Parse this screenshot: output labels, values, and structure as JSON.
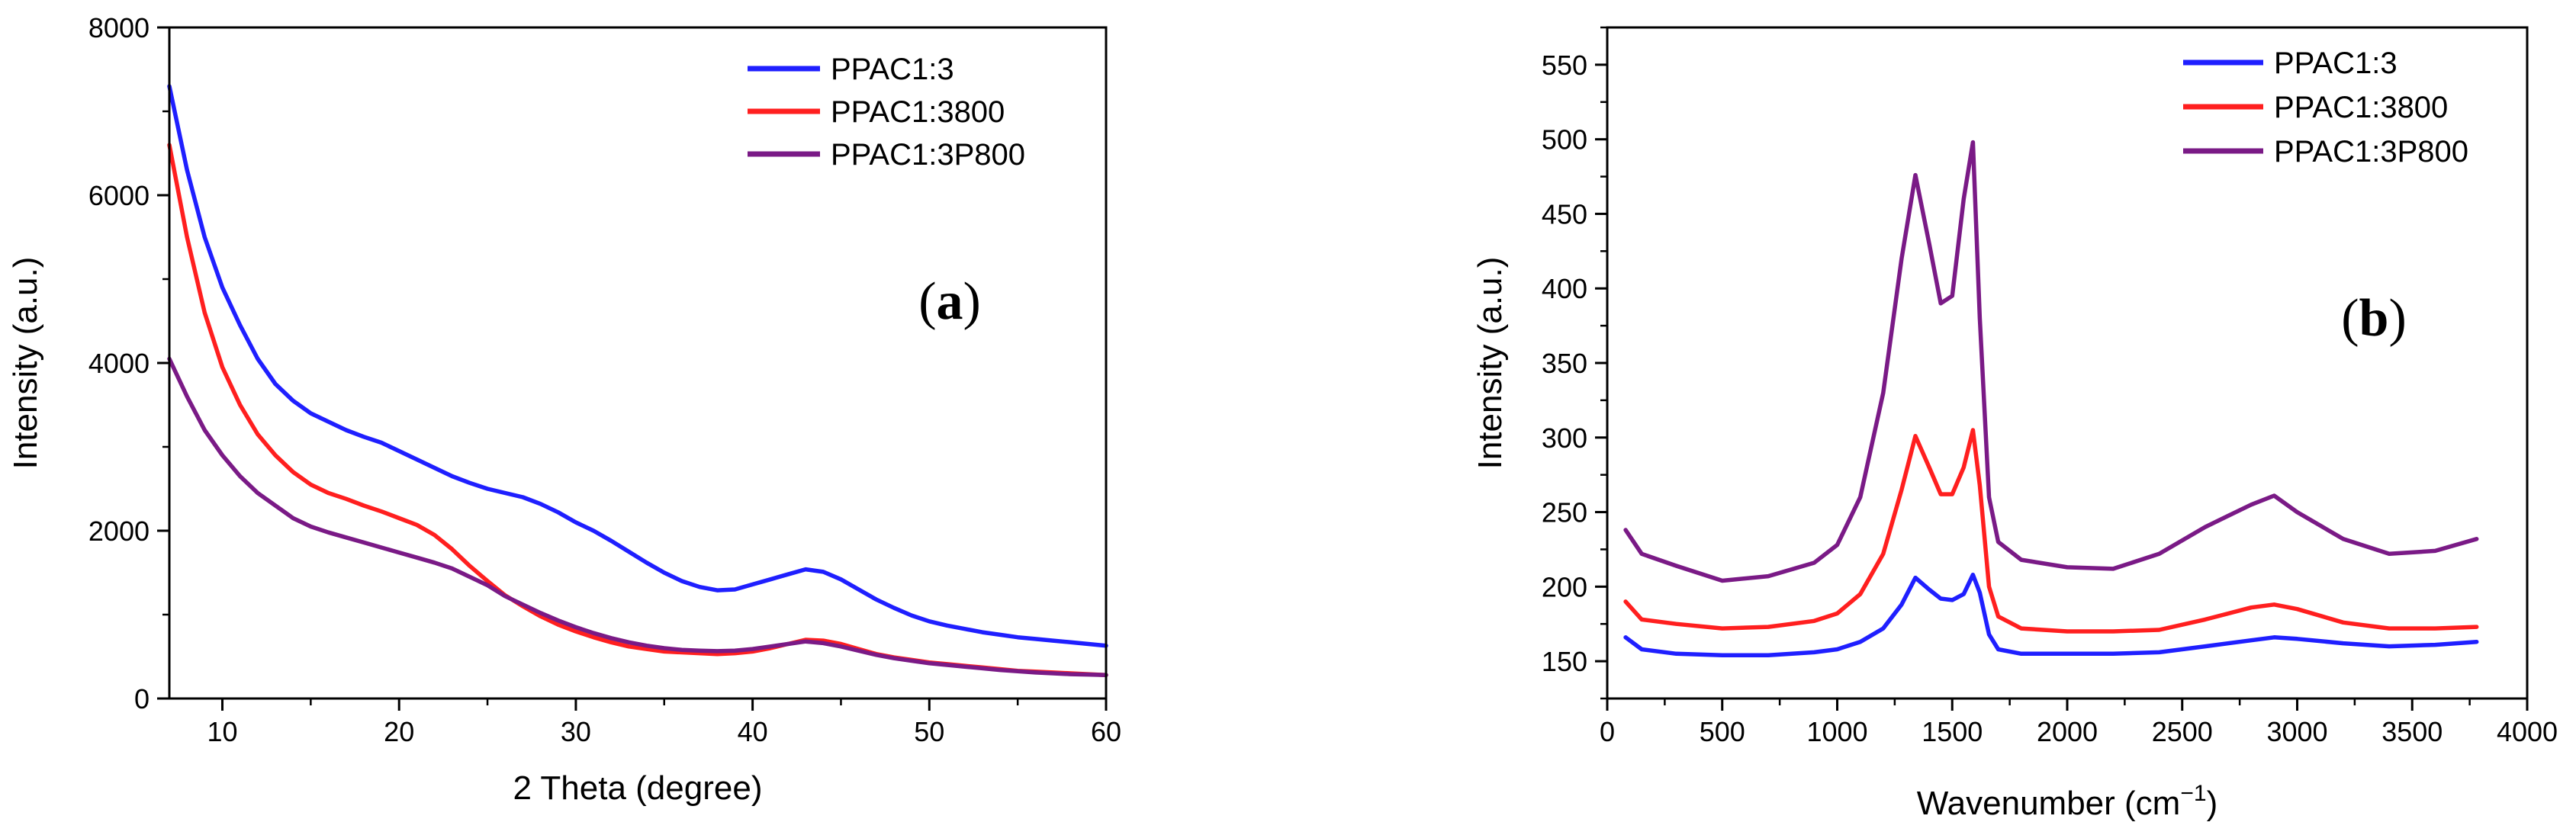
{
  "chart_data": [
    {
      "id": "a",
      "type": "line",
      "panel_label": "a",
      "title": "",
      "xlabel": "2 Theta (degree)",
      "ylabel": "Intensity (a.u.)",
      "xlim": [
        7,
        60
      ],
      "ylim": [
        0,
        8000
      ],
      "xticks": [
        10,
        20,
        30,
        40,
        50,
        60
      ],
      "yticks": [
        0,
        2000,
        4000,
        6000,
        8000
      ],
      "legend_position": "top-right",
      "series": [
        {
          "name": "PPAC1:3",
          "color": "#1f1fff",
          "x": [
            7,
            8,
            9,
            10,
            11,
            12,
            13,
            14,
            15,
            16,
            17,
            18,
            19,
            20,
            21,
            22,
            23,
            24,
            25,
            26,
            27,
            28,
            29,
            30,
            31,
            32,
            33,
            34,
            35,
            36,
            37,
            38,
            39,
            40,
            41,
            42,
            43,
            44,
            45,
            46,
            47,
            48,
            49,
            50,
            51,
            52,
            53,
            54,
            55,
            56,
            57,
            58,
            59,
            60
          ],
          "y": [
            7300,
            6300,
            5500,
            4900,
            4450,
            4050,
            3750,
            3550,
            3400,
            3300,
            3200,
            3120,
            3050,
            2950,
            2850,
            2750,
            2650,
            2570,
            2500,
            2450,
            2400,
            2320,
            2220,
            2100,
            2000,
            1880,
            1750,
            1620,
            1500,
            1400,
            1330,
            1290,
            1300,
            1360,
            1420,
            1480,
            1540,
            1510,
            1420,
            1300,
            1180,
            1080,
            990,
            920,
            870,
            830,
            790,
            760,
            730,
            710,
            690,
            670,
            650,
            630
          ]
        },
        {
          "name": "PPAC1:3800",
          "color": "#ff1f1f",
          "x": [
            7,
            8,
            9,
            10,
            11,
            12,
            13,
            14,
            15,
            16,
            17,
            18,
            19,
            20,
            21,
            22,
            23,
            24,
            25,
            26,
            27,
            28,
            29,
            30,
            31,
            32,
            33,
            34,
            35,
            36,
            37,
            38,
            39,
            40,
            41,
            42,
            43,
            44,
            45,
            46,
            47,
            48,
            49,
            50,
            51,
            52,
            53,
            54,
            55,
            56,
            57,
            58,
            59,
            60
          ],
          "y": [
            6600,
            5500,
            4600,
            3950,
            3500,
            3150,
            2900,
            2700,
            2550,
            2450,
            2380,
            2300,
            2230,
            2150,
            2070,
            1950,
            1780,
            1580,
            1400,
            1230,
            1100,
            980,
            880,
            800,
            730,
            670,
            620,
            590,
            560,
            550,
            540,
            530,
            540,
            560,
            600,
            650,
            700,
            690,
            650,
            590,
            530,
            490,
            460,
            430,
            410,
            390,
            370,
            350,
            330,
            320,
            310,
            300,
            290,
            280
          ]
        },
        {
          "name": "PPAC1:3P800",
          "color": "#7a1a86",
          "x": [
            7,
            8,
            9,
            10,
            11,
            12,
            13,
            14,
            15,
            16,
            17,
            18,
            19,
            20,
            21,
            22,
            23,
            24,
            25,
            26,
            27,
            28,
            29,
            30,
            31,
            32,
            33,
            34,
            35,
            36,
            37,
            38,
            39,
            40,
            41,
            42,
            43,
            44,
            45,
            46,
            47,
            48,
            49,
            50,
            51,
            52,
            53,
            54,
            55,
            56,
            57,
            58,
            59,
            60
          ],
          "y": [
            4050,
            3600,
            3200,
            2900,
            2650,
            2450,
            2300,
            2150,
            2050,
            1980,
            1920,
            1860,
            1800,
            1740,
            1680,
            1620,
            1550,
            1450,
            1350,
            1220,
            1120,
            1020,
            930,
            850,
            780,
            720,
            670,
            630,
            600,
            580,
            570,
            565,
            570,
            590,
            620,
            650,
            680,
            660,
            620,
            570,
            520,
            480,
            450,
            420,
            400,
            380,
            360,
            340,
            325,
            310,
            300,
            290,
            285,
            280
          ]
        }
      ]
    },
    {
      "id": "b",
      "type": "line",
      "panel_label": "b",
      "title": "",
      "xlabel": "Wavenumber (cm",
      "xlabel_superscript": "−1",
      "xlabel_suffix": ")",
      "ylabel": "Intensity (a.u.)",
      "xlim": [
        0,
        4000
      ],
      "ylim": [
        125,
        575
      ],
      "xticks": [
        0,
        500,
        1000,
        1500,
        2000,
        2500,
        3000,
        3500,
        4000
      ],
      "yticks": [
        150,
        200,
        250,
        300,
        350,
        400,
        450,
        500,
        550
      ],
      "legend_position": "top-right",
      "series": [
        {
          "name": "PPAC1:3",
          "color": "#1f1fff",
          "x": [
            80,
            150,
            300,
            500,
            700,
            900,
            1000,
            1100,
            1200,
            1280,
            1340,
            1400,
            1450,
            1500,
            1550,
            1590,
            1620,
            1660,
            1700,
            1800,
            2000,
            2200,
            2400,
            2600,
            2800,
            2900,
            3000,
            3200,
            3400,
            3600,
            3780
          ],
          "y": [
            166,
            158,
            155,
            154,
            154,
            156,
            158,
            163,
            172,
            188,
            206,
            198,
            192,
            191,
            195,
            208,
            196,
            168,
            158,
            155,
            155,
            155,
            156,
            160,
            164,
            166,
            165,
            162,
            160,
            161,
            163
          ]
        },
        {
          "name": "PPAC1:3800",
          "color": "#ff1f1f",
          "x": [
            80,
            150,
            300,
            500,
            700,
            900,
            1000,
            1100,
            1200,
            1280,
            1340,
            1400,
            1450,
            1500,
            1550,
            1590,
            1620,
            1660,
            1700,
            1800,
            2000,
            2200,
            2400,
            2600,
            2800,
            2900,
            3000,
            3200,
            3400,
            3600,
            3780
          ],
          "y": [
            190,
            178,
            175,
            172,
            173,
            177,
            182,
            195,
            222,
            265,
            301,
            280,
            262,
            262,
            280,
            305,
            268,
            200,
            180,
            172,
            170,
            170,
            171,
            178,
            186,
            188,
            185,
            176,
            172,
            172,
            173
          ]
        },
        {
          "name": "PPAC1:3P800",
          "color": "#7a1a86",
          "x": [
            80,
            150,
            300,
            500,
            700,
            900,
            1000,
            1100,
            1200,
            1280,
            1340,
            1400,
            1450,
            1500,
            1550,
            1590,
            1620,
            1660,
            1700,
            1800,
            2000,
            2200,
            2400,
            2600,
            2800,
            2900,
            3000,
            3200,
            3400,
            3600,
            3780
          ],
          "y": [
            238,
            222,
            214,
            204,
            207,
            216,
            228,
            260,
            330,
            420,
            476,
            430,
            390,
            395,
            460,
            498,
            380,
            260,
            230,
            218,
            213,
            212,
            222,
            240,
            255,
            261,
            250,
            232,
            222,
            224,
            232
          ]
        }
      ]
    }
  ]
}
